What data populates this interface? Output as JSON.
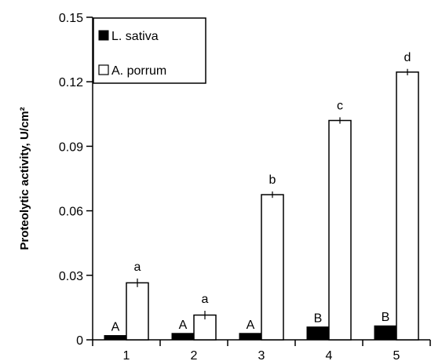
{
  "chart_data": {
    "type": "bar",
    "title": "",
    "xlabel": "",
    "ylabel": "Proteolytic activity, U/cm²",
    "ylim": [
      0,
      0.15
    ],
    "yticks": [
      "0",
      "0.03",
      "0.06",
      "0.09",
      "0.12",
      "0.15"
    ],
    "categories": [
      "1",
      "2",
      "3",
      "4",
      "5"
    ],
    "legend_position": "top-left",
    "grid": false,
    "series": [
      {
        "name": "L. sativa",
        "color": "#000000",
        "fill": "solid",
        "values": [
          0.002,
          0.003,
          0.003,
          0.006,
          0.0065
        ],
        "errors": [
          0,
          0,
          0,
          0,
          0
        ],
        "labels": [
          "A",
          "A",
          "A",
          "B",
          "B"
        ]
      },
      {
        "name": "A. porrum",
        "color": "#ffffff",
        "fill": "outline",
        "values": [
          0.0265,
          0.0115,
          0.0675,
          0.102,
          0.1245
        ],
        "errors": [
          0.002,
          0.002,
          0.0015,
          0.0015,
          0.0015
        ],
        "labels": [
          "a",
          "a",
          "b",
          "c",
          "d"
        ]
      }
    ]
  }
}
